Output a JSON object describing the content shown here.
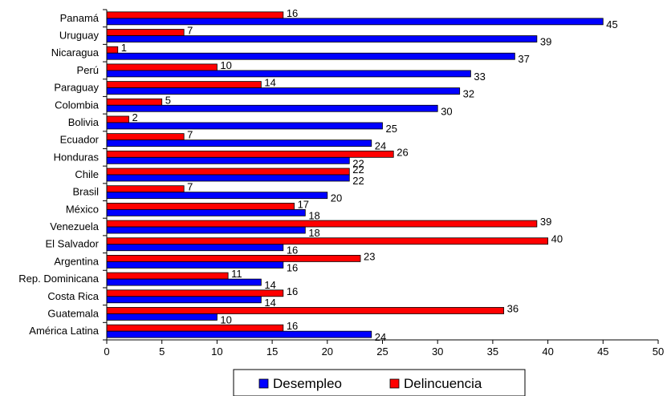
{
  "chart_data": {
    "type": "bar",
    "orientation": "horizontal",
    "categories": [
      "Panamá",
      "Uruguay",
      "Nicaragua",
      "Perú",
      "Paraguay",
      "Colombia",
      "Bolivia",
      "Ecuador",
      "Honduras",
      "Chile",
      "Brasil",
      "México",
      "Venezuela",
      "El Salvador",
      "Argentina",
      "Rep. Dominicana",
      "Costa Rica",
      "Guatemala",
      "América Latina"
    ],
    "series": [
      {
        "name": "Desempleo",
        "color": "#0000ff",
        "values": [
          45,
          39,
          37,
          33,
          32,
          30,
          25,
          24,
          22,
          22,
          20,
          18,
          18,
          16,
          16,
          14,
          14,
          10,
          24
        ]
      },
      {
        "name": "Delincuencia",
        "color": "#ff0000",
        "values": [
          16,
          7,
          1,
          10,
          14,
          5,
          2,
          7,
          26,
          22,
          7,
          17,
          39,
          40,
          23,
          11,
          16,
          36,
          16
        ]
      }
    ],
    "xlim": [
      0,
      50
    ],
    "xticks": [
      "0",
      "5",
      "10",
      "15",
      "20",
      "25",
      "30",
      "35",
      "40",
      "45",
      "50"
    ],
    "grid": false,
    "legend_position": "bottom"
  }
}
